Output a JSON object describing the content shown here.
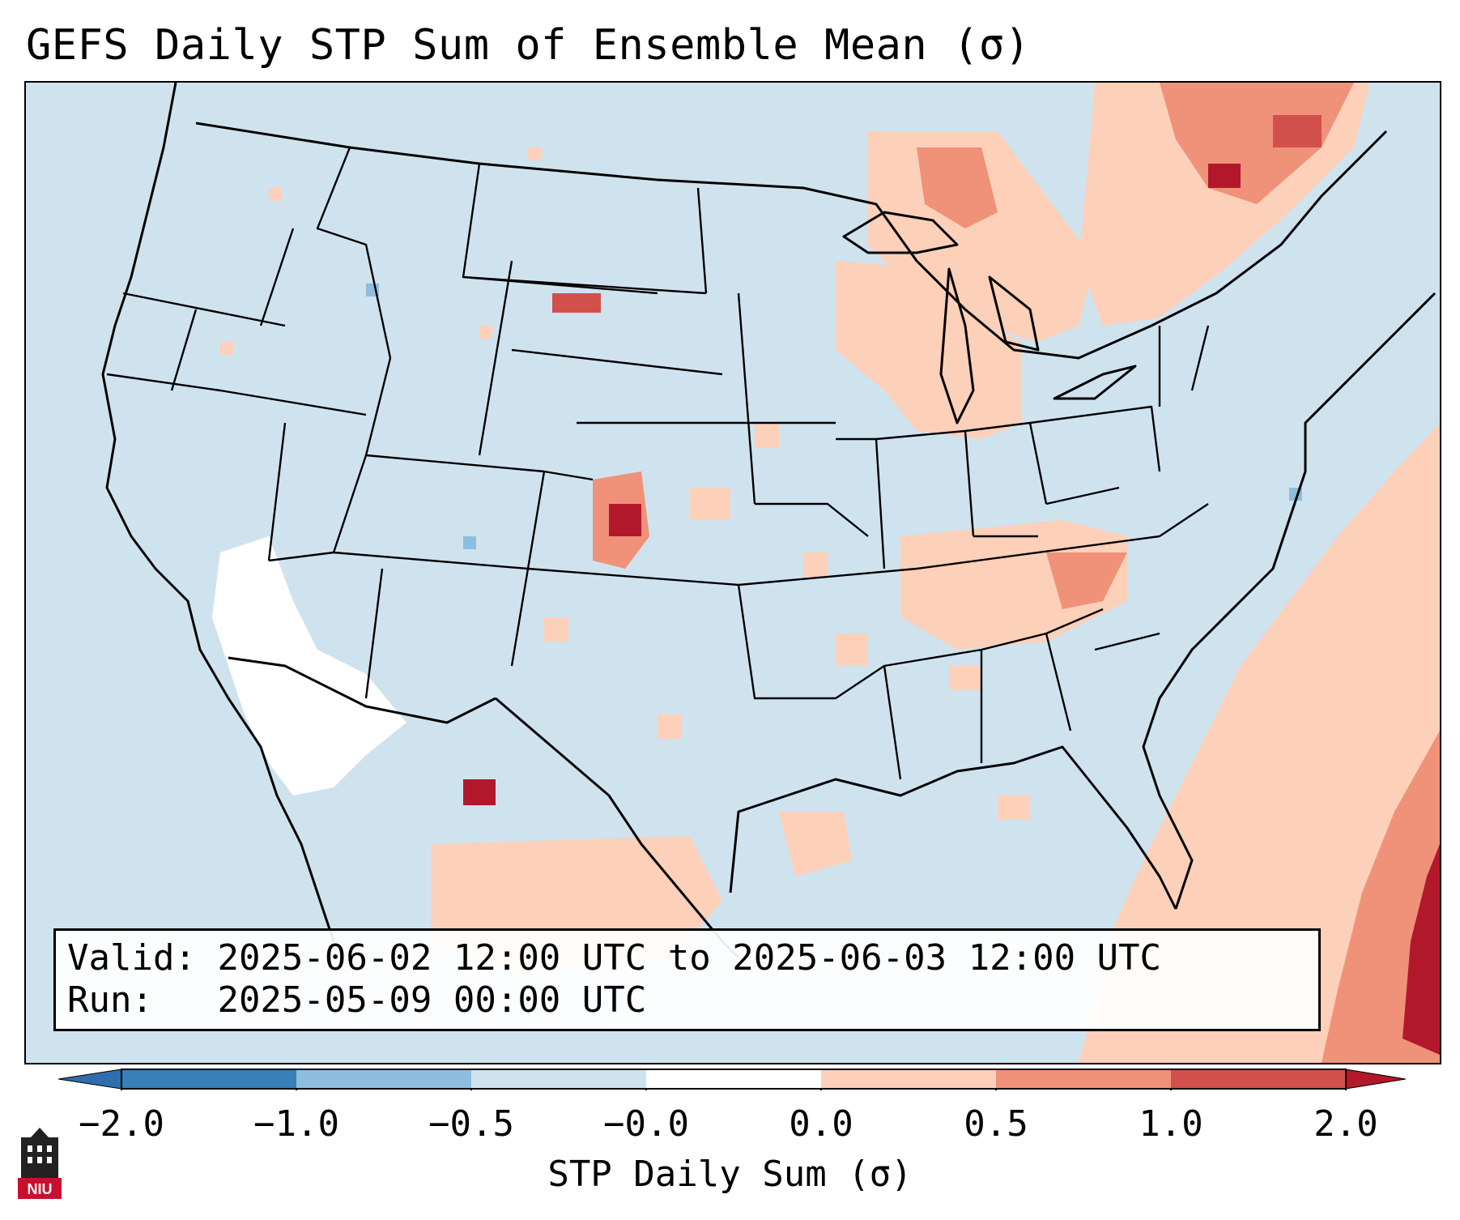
{
  "title": "GEFS Daily STP Sum of Ensemble Mean (σ)",
  "info": {
    "valid_label": "Valid:",
    "valid_value": "2025-06-02 12:00 UTC to 2025-06-03 12:00 UTC",
    "run_label": "Run:",
    "run_value": "2025-05-09 00:00 UTC"
  },
  "colorbar": {
    "label": "STP Daily Sum (σ)",
    "ticks": [
      "−2.0",
      "−1.0",
      "−0.5",
      "−0.0",
      "0.0",
      "0.5",
      "1.0",
      "2.0"
    ],
    "bin_colors": [
      "#3a80b8",
      "#8dbedd",
      "#cfe3ef",
      "#ffffff",
      "#fdd0b9",
      "#f0917a",
      "#d2504b"
    ],
    "under_color": "#2f6eac",
    "over_color": "#b2182b"
  },
  "logo": {
    "text": "NIU",
    "name": "Northern Illinois University"
  },
  "map_colors": {
    "background": "#cfe3ef",
    "bin_0_05": "#fdd0b9",
    "bin_05_1": "#f0917a",
    "bin_1_2": "#d2504b",
    "bin_2_plus": "#b2182b",
    "bin_neg": "#8dbedd",
    "bin_zero": "#ffffff"
  }
}
